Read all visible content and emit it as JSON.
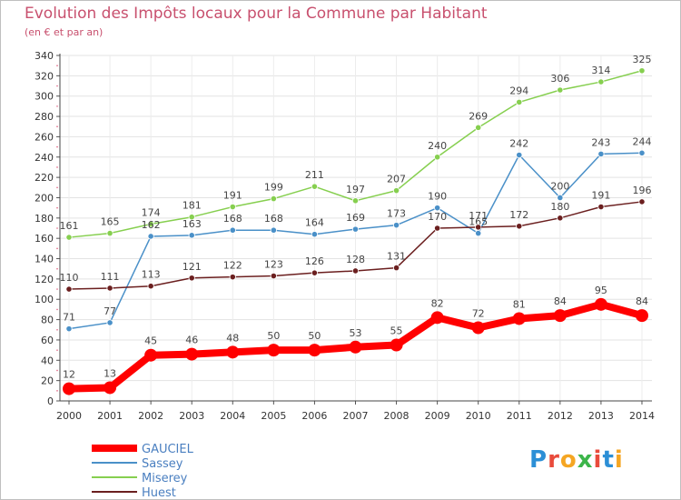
{
  "title": "Evolution des Impôts locaux pour la Commune par Habitant",
  "subtitle": "(en € et par an)",
  "logo": {
    "text": "Proxiti",
    "colors": [
      "#2c8fd6",
      "#e94b3c",
      "#f5a623",
      "#3cb54a",
      "#e94b3c",
      "#2c8fd6",
      "#f5a623"
    ]
  },
  "chart_data": {
    "type": "line",
    "title": "Evolution des Impôts locaux pour la Commune par Habitant",
    "subtitle": "(en € et par an)",
    "categories": [
      "2000",
      "2001",
      "2002",
      "2003",
      "2004",
      "2005",
      "2006",
      "2007",
      "2008",
      "2009",
      "2010",
      "2011",
      "2012",
      "2013",
      "2014"
    ],
    "ylim": [
      0,
      340
    ],
    "yticks": [
      0,
      20,
      40,
      60,
      80,
      100,
      120,
      140,
      160,
      180,
      200,
      220,
      240,
      260,
      280,
      300,
      320,
      340
    ],
    "grid": true,
    "legend_position": "bottom-left",
    "series": [
      {
        "name": "Miserey",
        "color": "#86cf4f",
        "values": [
          161,
          165,
          174,
          181,
          191,
          199,
          211,
          197,
          207,
          240,
          269,
          294,
          306,
          314,
          325
        ]
      },
      {
        "name": "Sassey",
        "color": "#4a90c8",
        "values": [
          71,
          77,
          162,
          163,
          168,
          168,
          164,
          169,
          173,
          190,
          165,
          242,
          200,
          243,
          244
        ]
      },
      {
        "name": "Huest",
        "color": "#6b1f1f",
        "values": [
          110,
          111,
          113,
          121,
          122,
          123,
          126,
          128,
          131,
          170,
          171,
          172,
          180,
          191,
          196
        ]
      },
      {
        "name": "GAUCIEL",
        "color": "#ff0000",
        "values": [
          12,
          13,
          45,
          46,
          48,
          50,
          50,
          53,
          55,
          82,
          72,
          81,
          84,
          95,
          84
        ]
      }
    ],
    "legend_order": [
      "GAUCIEL",
      "Sassey",
      "Miserey",
      "Huest"
    ]
  }
}
